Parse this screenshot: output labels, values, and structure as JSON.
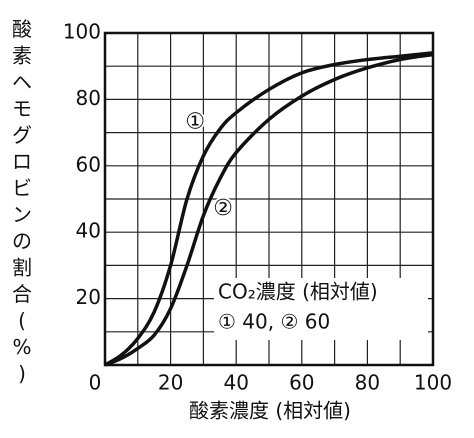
{
  "chart_data": {
    "type": "line",
    "xlabel": "酸素濃度 (相対値)",
    "ylabel": "酸素ヘモグロビンの割合(%)",
    "x": [
      0,
      5,
      10,
      15,
      20,
      25,
      30,
      35,
      40,
      50,
      60,
      70,
      80,
      90,
      100
    ],
    "series": [
      {
        "name": "①",
        "color": "#111111",
        "values": [
          0,
          3,
          8,
          16,
          30,
          50,
          63,
          71,
          76,
          83,
          88,
          90.5,
          92,
          93,
          94
        ]
      },
      {
        "name": "②",
        "color": "#111111",
        "values": [
          0,
          2,
          5,
          9,
          17,
          30,
          45,
          56,
          64,
          74,
          81,
          86,
          89.5,
          92,
          93.5
        ]
      }
    ],
    "annotations": [
      "CO₂濃度 (相対値)",
      "① 40,  ② 60"
    ],
    "xlim": [
      0,
      100
    ],
    "ylim": [
      0,
      100
    ],
    "xticks": [
      0,
      20,
      40,
      60,
      80,
      100
    ],
    "yticks": [
      0,
      20,
      40,
      60,
      80,
      100
    ],
    "xminor": [
      10,
      30,
      50,
      70,
      90
    ],
    "yminor": [
      10,
      30,
      50,
      70,
      90
    ],
    "grid": true
  }
}
